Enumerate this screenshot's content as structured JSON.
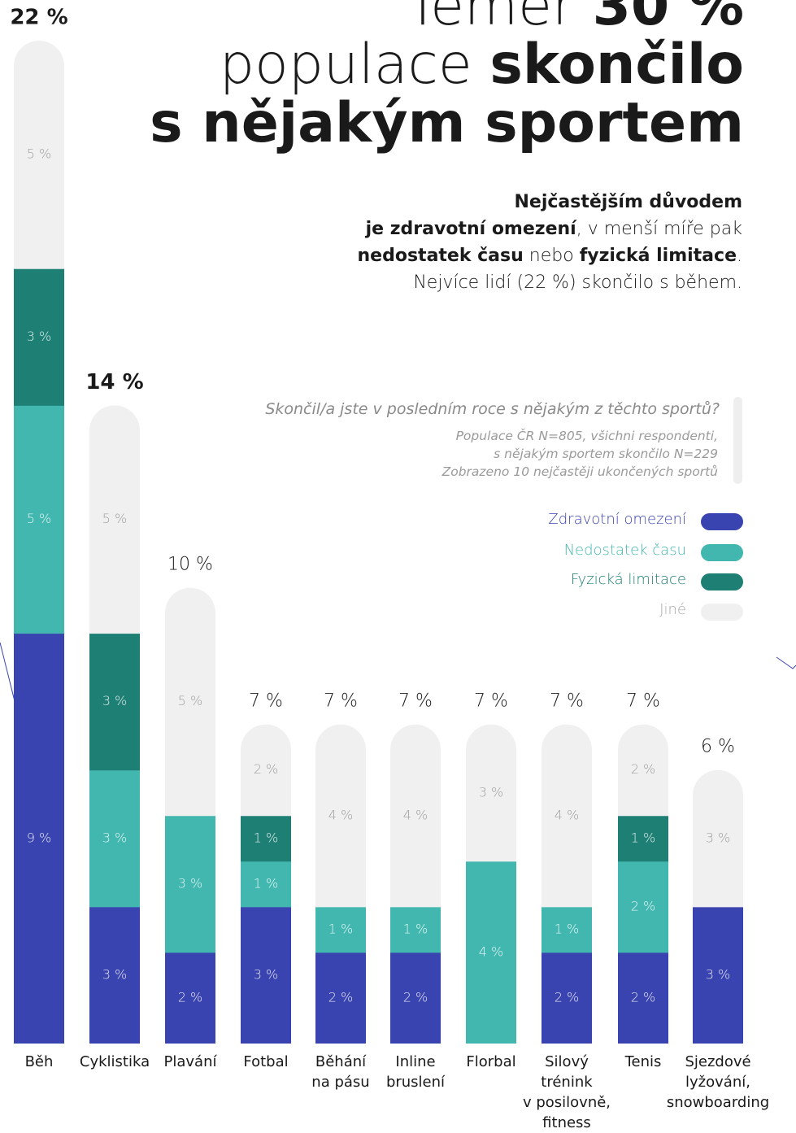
{
  "chart_data": {
    "type": "stacked_bar",
    "title": [
      [
        {
          "text": "Téměř ",
          "bold": false
        },
        {
          "text": "30 %",
          "bold": true
        }
      ],
      [
        {
          "text": "populace ",
          "bold": false
        },
        {
          "text": "skončilo",
          "bold": true
        }
      ],
      [
        {
          "text": "s nějakým sportem",
          "bold": true
        }
      ]
    ],
    "description": [
      [
        {
          "text": "Nejčastějším důvodem",
          "bold": true
        }
      ],
      [
        {
          "text": "je zdravotní omezení",
          "bold": true
        },
        {
          "text": ", v menší míře pak",
          "bold": false
        }
      ],
      [
        {
          "text": "nedostatek času",
          "bold": true
        },
        {
          "text": " nebo ",
          "bold": false
        },
        {
          "text": "fyzická limitace",
          "bold": true
        },
        {
          "text": ".",
          "bold": false
        }
      ],
      [
        {
          "text": "Nejvíce lidí (22 %) skončilo s během.",
          "bold": false
        }
      ]
    ],
    "question": "Skončil/a jste v posledním roce s nějakým z těchto sportů?",
    "notes": [
      "Populace ČR N=805, všichni respondenti,",
      "s nějakým sportem skončilo N=229",
      "Zobrazeno 10 nejčastěji ukončených sportů"
    ],
    "categories": [
      "Běh",
      "Cyklistika",
      "Plavání",
      "Fotbal",
      "Běhání\nna pásu",
      "Inline\nbruslení",
      "Florbal",
      "Silový\ntrénink\nv posilovně,\nfitness",
      "Tenis",
      "Sjezdové\nlyžování,\nsnowboarding"
    ],
    "totals": [
      22,
      14,
      10,
      7,
      7,
      7,
      7,
      7,
      7,
      6
    ],
    "total_labels": [
      "22 %",
      "14 %",
      "10 %",
      "7 %",
      "7 %",
      "7 %",
      "7 %",
      "7 %",
      "7 %",
      "6 %"
    ],
    "series": [
      {
        "name": "Zdravotní omezení",
        "color": "#3a44b0",
        "values": [
          9,
          3,
          2,
          3,
          2,
          2,
          null,
          2,
          2,
          3
        ],
        "value_labels": [
          "9 %",
          "3 %",
          "2 %",
          "3 %",
          "2 %",
          "2 %",
          null,
          "2 %",
          "2 %",
          "3 %"
        ]
      },
      {
        "name": "Nedostatek času",
        "color": "#42b7b0",
        "values": [
          5,
          3,
          3,
          1,
          1,
          1,
          4,
          1,
          2,
          null
        ],
        "value_labels": [
          "5 %",
          "3 %",
          "3 %",
          "1 %",
          "1 %",
          "1 %",
          "4 %",
          "1 %",
          "2 %",
          null
        ]
      },
      {
        "name": "Fyzická limitace",
        "color": "#1e7f74",
        "values": [
          3,
          3,
          null,
          1,
          null,
          null,
          null,
          null,
          1,
          null
        ],
        "value_labels": [
          "3 %",
          "3 %",
          null,
          "1 %",
          null,
          null,
          null,
          null,
          "1 %",
          null
        ]
      },
      {
        "name": "Jiné",
        "color": "#f0f0f0",
        "values": [
          5,
          5,
          5,
          2,
          4,
          4,
          3,
          4,
          2,
          3
        ],
        "value_labels": [
          "5 %",
          "5 %",
          "5 %",
          "2 %",
          "4 %",
          "4 %",
          "3 %",
          "4 %",
          "2 %",
          "3 %"
        ]
      }
    ]
  }
}
